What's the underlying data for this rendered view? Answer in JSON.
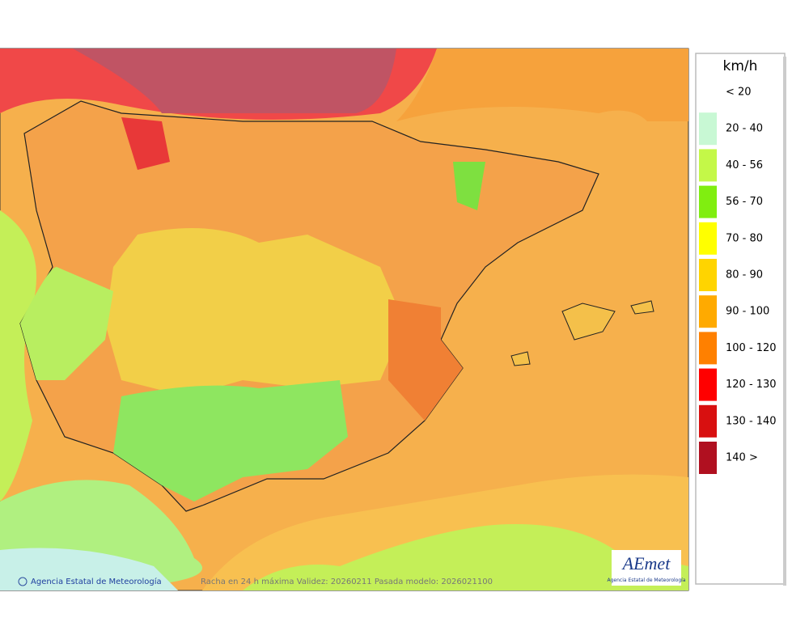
{
  "legend": {
    "unit": "km/h",
    "items": [
      {
        "label": "< 20",
        "color": "#ffffff"
      },
      {
        "label": "20 - 40",
        "color": "#c8f8d4"
      },
      {
        "label": "40 - 56",
        "color": "#c4f848"
      },
      {
        "label": "56 - 70",
        "color": "#80ee10"
      },
      {
        "label": "70 - 80",
        "color": "#ffff00"
      },
      {
        "label": "80 - 90",
        "color": "#ffd400"
      },
      {
        "label": "90 - 100",
        "color": "#ffaa00"
      },
      {
        "label": "100 - 120",
        "color": "#ff8000"
      },
      {
        "label": "120 - 130",
        "color": "#ff0000"
      },
      {
        "label": "130 - 140",
        "color": "#d81010"
      },
      {
        "label": "140 >",
        "color": "#b01020"
      }
    ]
  },
  "footer": {
    "credit": "Agencia Estatal de Meteorología",
    "caption": "Racha en 24 h máxima  Validez: 20260211 Pasada modelo: 2026021100"
  },
  "logo": {
    "text": "AEmet",
    "subtitle": "Agencia Estatal de Meteorología"
  }
}
